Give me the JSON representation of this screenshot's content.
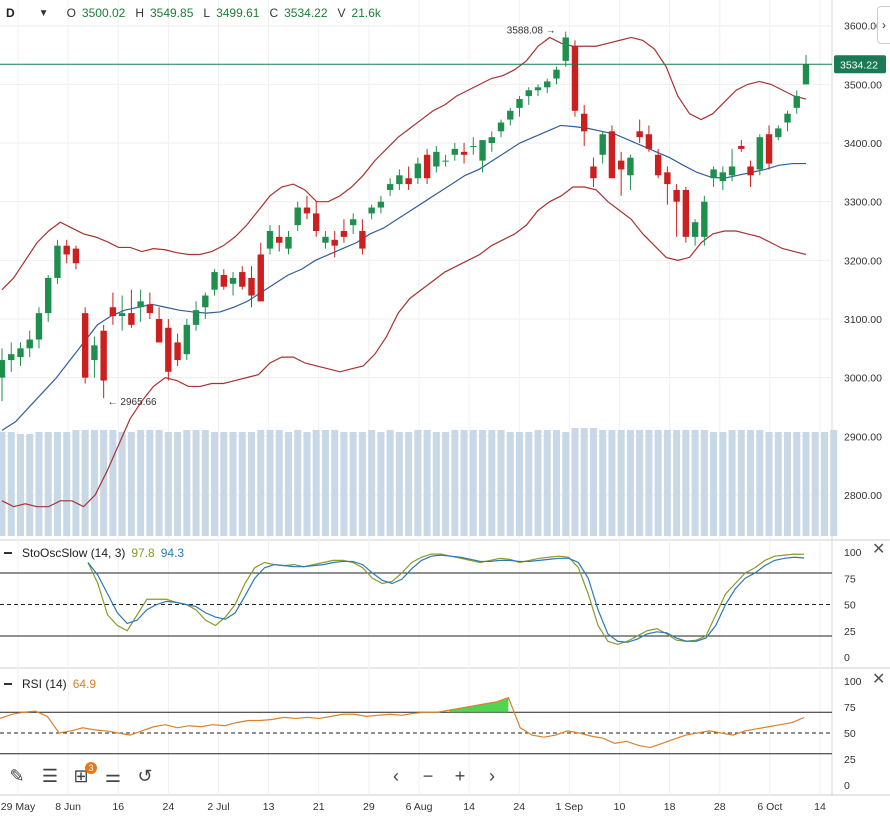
{
  "header": {
    "symbol": "D",
    "open_key": "O",
    "open": "3500.02",
    "high_key": "H",
    "high": "3549.85",
    "low_key": "L",
    "low": "3499.61",
    "close_key": "C",
    "close": "3534.22",
    "vol_key": "V",
    "volume": "21.6k"
  },
  "indicators": {
    "stoch": {
      "name": "StoOscSlow (14, 3)",
      "k_value": "97.8",
      "d_value": "94.3",
      "k_color": "#8a9a2a",
      "d_color": "#2a7ab8"
    },
    "rsi": {
      "name": "RSI (14)",
      "value": "64.9",
      "color": "#d9822b"
    }
  },
  "colors": {
    "up": "#1f8f4e",
    "down": "#cc1f1f",
    "bb_band": "#a83232",
    "bb_mid": "#2f5f9e",
    "volume": "#c9d8e6",
    "price_line": "#1a7a55"
  },
  "toolbar": {
    "draw_icon": "pencil-icon",
    "list_icon": "list-icon",
    "add_indicator_icon": "add-indicator-icon",
    "badge_count": "3",
    "settings_icon": "sliders-icon",
    "reset_icon": "reset-icon",
    "prev_icon": "chevron-left-icon",
    "zoom_out_icon": "minus-icon",
    "zoom_in_icon": "plus-icon",
    "next_icon": "chevron-right-icon"
  },
  "chart_data": [
    {
      "type": "candlestick",
      "title": "",
      "price_axis": {
        "ticks": [
          "3600.00",
          "3500.00",
          "3400.00",
          "3300.00",
          "3200.00",
          "3100.00",
          "3000.00",
          "2900.00",
          "2800.00"
        ],
        "range": [
          2730,
          3620
        ]
      },
      "x_ticks": [
        "29 May",
        "8 Jun",
        "16",
        "24",
        "2 Jul",
        "13",
        "21",
        "29",
        "6 Aug",
        "14",
        "24",
        "1 Sep",
        "10",
        "18",
        "28",
        "6 Oct",
        "14"
      ],
      "last_price_label": "3534.22",
      "annotations": [
        {
          "text": "3588.08",
          "type": "high"
        },
        {
          "text": "2965.66",
          "type": "low"
        }
      ],
      "candles": [
        [
          3000,
          3050,
          2960,
          3030
        ],
        [
          3030,
          3060,
          3010,
          3040
        ],
        [
          3035,
          3060,
          3020,
          3050
        ],
        [
          3050,
          3080,
          3035,
          3065
        ],
        [
          3065,
          3120,
          3050,
          3110
        ],
        [
          3110,
          3175,
          3095,
          3170
        ],
        [
          3170,
          3235,
          3160,
          3225
        ],
        [
          3225,
          3235,
          3195,
          3210
        ],
        [
          3220,
          3225,
          3185,
          3195
        ],
        [
          3110,
          3120,
          2990,
          3000
        ],
        [
          3030,
          3070,
          3000,
          3055
        ],
        [
          3080,
          3090,
          2965,
          2995
        ],
        [
          3120,
          3145,
          3090,
          3105
        ],
        [
          3105,
          3140,
          3080,
          3110
        ],
        [
          3110,
          3150,
          3085,
          3090
        ],
        [
          3120,
          3150,
          3095,
          3130
        ],
        [
          3125,
          3145,
          3100,
          3110
        ],
        [
          3100,
          3120,
          3060,
          3060
        ],
        [
          3085,
          3100,
          2995,
          3010
        ],
        [
          3060,
          3075,
          3020,
          3030
        ],
        [
          3040,
          3100,
          3030,
          3090
        ],
        [
          3090,
          3130,
          3080,
          3115
        ],
        [
          3120,
          3145,
          3100,
          3140
        ],
        [
          3150,
          3185,
          3140,
          3180
        ],
        [
          3175,
          3185,
          3150,
          3155
        ],
        [
          3160,
          3180,
          3140,
          3170
        ],
        [
          3180,
          3190,
          3150,
          3155
        ],
        [
          3170,
          3190,
          3120,
          3140
        ],
        [
          3210,
          3230,
          3130,
          3130
        ],
        [
          3220,
          3260,
          3210,
          3250
        ],
        [
          3240,
          3260,
          3215,
          3230
        ],
        [
          3220,
          3250,
          3210,
          3240
        ],
        [
          3260,
          3300,
          3250,
          3290
        ],
        [
          3290,
          3310,
          3270,
          3280
        ],
        [
          3280,
          3300,
          3240,
          3250
        ],
        [
          3230,
          3250,
          3220,
          3240
        ],
        [
          3235,
          3250,
          3205,
          3225
        ],
        [
          3250,
          3270,
          3230,
          3240
        ],
        [
          3260,
          3280,
          3245,
          3270
        ],
        [
          3250,
          3270,
          3210,
          3220
        ],
        [
          3280,
          3295,
          3270,
          3290
        ],
        [
          3290,
          3310,
          3280,
          3300
        ],
        [
          3320,
          3340,
          3310,
          3330
        ],
        [
          3330,
          3355,
          3320,
          3345
        ],
        [
          3340,
          3360,
          3320,
          3330
        ],
        [
          3340,
          3375,
          3330,
          3365
        ],
        [
          3380,
          3390,
          3330,
          3340
        ],
        [
          3360,
          3395,
          3350,
          3385
        ],
        [
          3370,
          3380,
          3360,
          3370
        ],
        [
          3380,
          3400,
          3370,
          3390
        ],
        [
          3385,
          3400,
          3365,
          3380
        ],
        [
          3395,
          3410,
          3380,
          3395
        ],
        [
          3370,
          3405,
          3350,
          3405
        ],
        [
          3400,
          3420,
          3385,
          3410
        ],
        [
          3420,
          3440,
          3410,
          3435
        ],
        [
          3440,
          3460,
          3430,
          3455
        ],
        [
          3460,
          3480,
          3445,
          3475
        ],
        [
          3480,
          3495,
          3465,
          3490
        ],
        [
          3490,
          3500,
          3480,
          3495
        ],
        [
          3495,
          3510,
          3485,
          3505
        ],
        [
          3510,
          3530,
          3500,
          3525
        ],
        [
          3540,
          3590,
          3530,
          3580
        ],
        [
          3565,
          3575,
          3445,
          3455
        ],
        [
          3450,
          3465,
          3395,
          3420
        ],
        [
          3360,
          3375,
          3325,
          3340
        ],
        [
          3380,
          3420,
          3365,
          3415
        ],
        [
          3420,
          3430,
          3340,
          3340
        ],
        [
          3370,
          3385,
          3310,
          3355
        ],
        [
          3345,
          3380,
          3320,
          3375
        ],
        [
          3420,
          3440,
          3400,
          3410
        ],
        [
          3415,
          3430,
          3385,
          3390
        ],
        [
          3380,
          3390,
          3340,
          3345
        ],
        [
          3350,
          3360,
          3295,
          3330
        ],
        [
          3320,
          3330,
          3240,
          3300
        ],
        [
          3320,
          3325,
          3230,
          3240
        ],
        [
          3240,
          3270,
          3225,
          3265
        ],
        [
          3240,
          3310,
          3225,
          3300
        ],
        [
          3340,
          3360,
          3325,
          3355
        ],
        [
          3335,
          3360,
          3320,
          3350
        ],
        [
          3345,
          3390,
          3335,
          3360
        ],
        [
          3395,
          3405,
          3385,
          3390
        ],
        [
          3360,
          3370,
          3325,
          3345
        ],
        [
          3355,
          3415,
          3345,
          3410
        ],
        [
          3415,
          3430,
          3355,
          3365
        ],
        [
          3410,
          3430,
          3405,
          3425
        ],
        [
          3435,
          3455,
          3420,
          3450
        ],
        [
          3460,
          3490,
          3450,
          3480
        ],
        [
          3500,
          3550,
          3500,
          3534
        ]
      ],
      "bb_upper": [
        3150,
        3170,
        3200,
        3230,
        3250,
        3265,
        3255,
        3245,
        3240,
        3232,
        3222,
        3222,
        3215,
        3220,
        3218,
        3213,
        3210,
        3210,
        3215,
        3225,
        3240,
        3260,
        3285,
        3310,
        3325,
        3330,
        3320,
        3300,
        3300,
        3310,
        3325,
        3345,
        3370,
        3390,
        3410,
        3425,
        3440,
        3455,
        3465,
        3480,
        3490,
        3500,
        3510,
        3515,
        3525,
        3540,
        3565,
        3580,
        3570,
        3565,
        3565,
        3565,
        3570,
        3575,
        3580,
        3575,
        3560,
        3530,
        3480,
        3450,
        3440,
        3450,
        3470,
        3490,
        3500,
        3505,
        3500,
        3490,
        3480,
        3475
      ],
      "bb_lower": [
        2790,
        2780,
        2785,
        2780,
        2780,
        2790,
        2790,
        2780,
        2800,
        2840,
        2885,
        2930,
        2960,
        2985,
        3000,
        2995,
        2985,
        2985,
        2990,
        2990,
        2995,
        3000,
        3005,
        3025,
        3035,
        3035,
        3025,
        3020,
        3015,
        3010,
        3015,
        3020,
        3040,
        3070,
        3110,
        3135,
        3150,
        3165,
        3180,
        3190,
        3200,
        3210,
        3225,
        3235,
        3245,
        3260,
        3285,
        3300,
        3310,
        3325,
        3325,
        3320,
        3300,
        3285,
        3270,
        3245,
        3225,
        3205,
        3200,
        3205,
        3230,
        3245,
        3250,
        3250,
        3245,
        3240,
        3230,
        3220,
        3215,
        3210
      ],
      "bb_mid": [
        2910,
        2925,
        2950,
        2975,
        3000,
        3030,
        3060,
        3090,
        3105,
        3115,
        3120,
        3125,
        3120,
        3115,
        3112,
        3110,
        3112,
        3120,
        3130,
        3145,
        3160,
        3175,
        3185,
        3200,
        3210,
        3220,
        3230,
        3245,
        3255,
        3270,
        3285,
        3300,
        3315,
        3330,
        3345,
        3355,
        3370,
        3385,
        3400,
        3410,
        3420,
        3430,
        3428,
        3425,
        3420,
        3415,
        3405,
        3395,
        3385,
        3375,
        3362,
        3350,
        3342,
        3340,
        3345,
        3350,
        3355,
        3362,
        3365,
        3365
      ],
      "volume": [
        52,
        52,
        51,
        51,
        52,
        52,
        52,
        52,
        53,
        53,
        53,
        53,
        53,
        52,
        52,
        53,
        53,
        53,
        52,
        52,
        53,
        53,
        53,
        52,
        52,
        52,
        52,
        52,
        53,
        53,
        53,
        52,
        53,
        52,
        53,
        53,
        53,
        52,
        52,
        52,
        53,
        52,
        53,
        52,
        52,
        53,
        53,
        52,
        52,
        53,
        53,
        53,
        53,
        53,
        53,
        52,
        52,
        52,
        53,
        53,
        53,
        52,
        54,
        54,
        54,
        53,
        53,
        53,
        53,
        53,
        53,
        53,
        53,
        53,
        53,
        53,
        53,
        52,
        52,
        53,
        53,
        53,
        53,
        52,
        52,
        52,
        52,
        52,
        52,
        52,
        53
      ]
    },
    {
      "type": "line",
      "title": "StoOscSlow (14, 3)",
      "y_ticks": [
        "100",
        "75",
        "50",
        "25",
        "0"
      ],
      "ylim": [
        0,
        100
      ],
      "levels": [
        80,
        50,
        20
      ],
      "series": [
        {
          "name": "%K",
          "values": [
            90,
            70,
            40,
            30,
            25,
            40,
            55,
            55,
            55,
            52,
            50,
            45,
            35,
            30,
            38,
            50,
            70,
            85,
            90,
            88,
            87,
            88,
            86,
            88,
            90,
            92,
            92,
            90,
            85,
            75,
            70,
            72,
            80,
            90,
            95,
            98,
            98,
            96,
            94,
            92,
            90,
            92,
            94,
            93,
            90,
            92,
            94,
            95,
            96,
            95,
            85,
            60,
            30,
            15,
            12,
            15,
            20,
            25,
            27,
            22,
            16,
            15,
            16,
            20,
            40,
            60,
            70,
            80,
            85,
            92,
            96,
            97,
            98,
            97.8
          ]
        },
        {
          "name": "%D",
          "values": [
            90,
            78,
            60,
            42,
            32,
            35,
            45,
            50,
            53,
            52,
            50,
            48,
            42,
            38,
            36,
            42,
            58,
            75,
            85,
            88,
            87,
            86,
            86,
            87,
            88,
            90,
            91,
            91,
            88,
            80,
            73,
            70,
            74,
            84,
            92,
            96,
            97,
            96,
            95,
            93,
            91,
            91,
            92,
            92,
            91,
            91,
            92,
            93,
            94,
            94,
            90,
            75,
            45,
            22,
            15,
            14,
            17,
            22,
            24,
            23,
            18,
            15,
            15,
            18,
            30,
            50,
            65,
            75,
            80,
            87,
            92,
            94,
            95,
            94.3
          ]
        }
      ]
    },
    {
      "type": "line",
      "title": "RSI (14)",
      "y_ticks": [
        "100",
        "75",
        "50",
        "25",
        "0"
      ],
      "ylim": [
        0,
        100
      ],
      "levels": [
        70,
        50,
        30
      ],
      "series": [
        {
          "name": "RSI",
          "values": [
            64,
            68,
            70,
            71,
            66,
            50,
            52,
            55,
            53,
            52,
            50,
            48,
            52,
            56,
            58,
            55,
            57,
            56,
            58,
            57,
            60,
            62,
            62,
            63,
            65,
            64,
            65,
            64,
            66,
            68,
            68,
            66,
            67,
            68,
            67,
            69,
            70,
            70,
            72,
            74,
            76,
            78,
            80,
            84,
            55,
            48,
            46,
            48,
            52,
            50,
            47,
            45,
            40,
            42,
            38,
            36,
            40,
            44,
            48,
            50,
            52,
            50,
            48,
            52,
            54,
            56,
            58,
            60,
            64.9
          ]
        }
      ]
    }
  ]
}
